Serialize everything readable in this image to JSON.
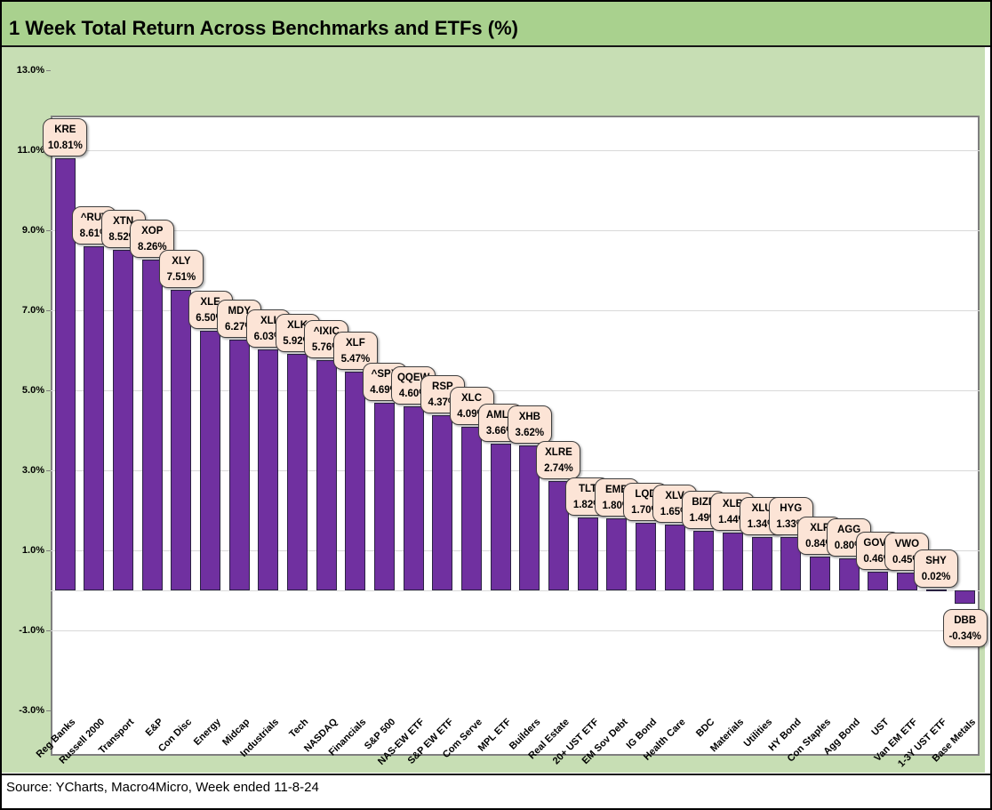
{
  "title": "1 Week Total Return Across Benchmarks and ETFs (%)",
  "footer": {
    "source_text": "Source: YCharts, Macro4Micro, Week ended 11-8-24"
  },
  "colors": {
    "title_bg": "#a9d18e",
    "chart_bg": "#c7deb4",
    "plot_bg": "#ffffff",
    "plot_border": "#7f7f7f",
    "gridline": "#d9d9d9",
    "bar_fill": "#7030a0",
    "bar_border": "#2b2343",
    "callout_bg": "#fce4d6",
    "callout_border": "#3f3f3f",
    "text": "#000000"
  },
  "chart_data": {
    "type": "bar",
    "title": "1 Week Total Return Across Benchmarks and ETFs (%)",
    "xlabel": "",
    "ylabel": "",
    "ylim": [
      -3,
      13
    ],
    "ytick_values": [
      13,
      11,
      9,
      7,
      5,
      3,
      1,
      -1,
      -3
    ],
    "ytick_labels": [
      "13.0%",
      "11.0%",
      "9.0%",
      "7.0%",
      "5.0%",
      "3.0%",
      "1.0%",
      "-1.0%",
      "-3.0%"
    ],
    "grid": true,
    "legend": false,
    "value_suffix": "%",
    "categories": [
      "Reg Banks",
      "Russell 2000",
      "Transport",
      "E&P",
      "Con Disc",
      "Energy",
      "Midcap",
      "Industrials",
      "Tech",
      "NASDAQ",
      "Financials",
      "S&P 500",
      "NAS-EW ETF",
      "S&P EW ETF",
      "Com Serve",
      "MPL ETF",
      "Builders",
      "Real Estate",
      "20+ UST ETF",
      "EM Sov Debt",
      "IG Bond",
      "Health Care",
      "BDC",
      "Materials",
      "Utilities",
      "HY Bond",
      "Con Staples",
      "Agg Bond",
      "UST",
      "Van EM ETF",
      "1-3Y UST ETF",
      "Base Metals"
    ],
    "tickers": [
      "KRE",
      "^RUT",
      "XTN",
      "XOP",
      "XLY",
      "XLE",
      "MDY",
      "XLI",
      "XLK",
      "^IXIC",
      "XLF",
      "^SPX",
      "QQEW",
      "RSP",
      "XLC",
      "AMLP",
      "XHB",
      "XLRE",
      "TLT",
      "EMB",
      "LQD",
      "XLV",
      "BIZD",
      "XLB",
      "XLU",
      "HYG",
      "XLP",
      "AGG",
      "GOVT",
      "VWO",
      "SHY",
      "DBB"
    ],
    "values": [
      10.81,
      8.61,
      8.52,
      8.26,
      7.51,
      6.5,
      6.27,
      6.03,
      5.92,
      5.76,
      5.47,
      4.69,
      4.6,
      4.37,
      4.09,
      3.66,
      3.62,
      2.74,
      1.82,
      1.8,
      1.7,
      1.65,
      1.49,
      1.44,
      1.34,
      1.33,
      0.84,
      0.8,
      0.46,
      0.45,
      0.02,
      -0.34
    ]
  }
}
